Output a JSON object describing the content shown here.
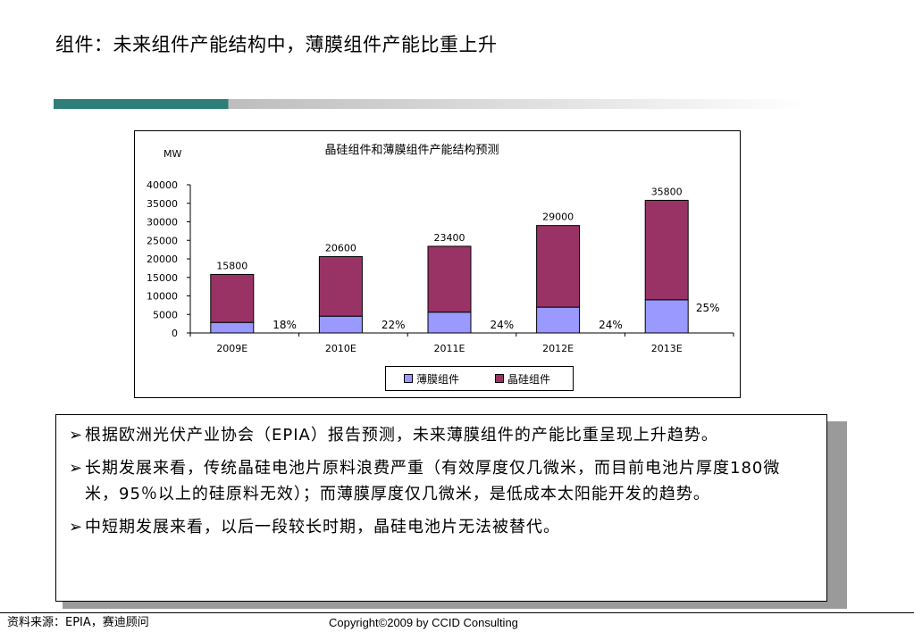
{
  "slide": {
    "title": "组件：未来组件产能结构中，薄膜组件产能比重上升"
  },
  "chart_data": {
    "type": "bar",
    "stacked": true,
    "title": "晶硅组件和薄膜组件产能结构预测",
    "ylabel": "MW",
    "xlabel": "",
    "categories": [
      "2009E",
      "2010E",
      "2011E",
      "2012E",
      "2013E"
    ],
    "ylim": [
      0,
      40000
    ],
    "yticks": [
      0,
      5000,
      10000,
      15000,
      20000,
      25000,
      30000,
      35000,
      40000
    ],
    "ytick_labels": [
      "0",
      "5000",
      "10000",
      "15000",
      "20000",
      "25000",
      "30000",
      "35000",
      "40000"
    ],
    "series": [
      {
        "name": "薄膜组件",
        "color": "#9999ff",
        "values": [
          2844,
          4532,
          5616,
          6960,
          8950
        ]
      },
      {
        "name": "晶硅组件",
        "color": "#993366",
        "values": [
          12956,
          16068,
          17784,
          22040,
          26850
        ]
      }
    ],
    "totals": [
      15800,
      20600,
      23400,
      29000,
      35800
    ],
    "total_labels": [
      "15800",
      "20600",
      "23400",
      "29000",
      "35800"
    ],
    "share_labels": [
      "18%",
      "22%",
      "24%",
      "24%",
      "25%"
    ],
    "grid": false,
    "legend": "bottom"
  },
  "notes": {
    "bullets": [
      "根据欧洲光伏产业协会（EPIA）报告预测，未来薄膜组件的产能比重呈现上升趋势。",
      "长期发展来看，传统晶硅电池片原料浪费严重（有效厚度仅几微米，而目前电池片厚度180微米，95％以上的硅原料无效）；而薄膜厚度仅几微米，是低成本太阳能开发的趋势。",
      "中短期发展来看，以后一段较长时期，晶硅电池片无法被替代。"
    ],
    "bullet_icon": "arrow-bullet-icon"
  },
  "footer": {
    "source": "资料来源：EPIA，赛迪顾问",
    "copyright": "Copyright©2009 by CCID Consulting"
  }
}
